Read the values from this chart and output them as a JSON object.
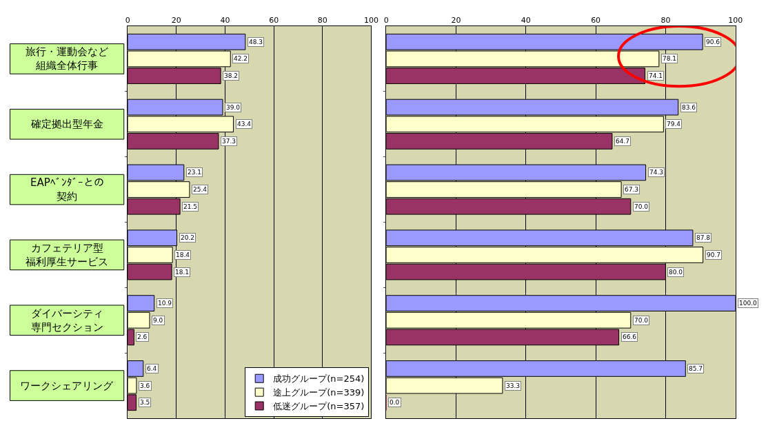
{
  "chart_data": [
    {
      "type": "bar",
      "orientation": "horizontal",
      "categories": [
        "旅行・運動会など組織全体行事",
        "確定拠出型年金",
        "EAPﾍﾞﾝﾀﾞｰとの契約",
        "カフェテリア型福利厚生サービス",
        "ダイバーシティ専門セクション",
        "ワークシェアリング"
      ],
      "series": [
        {
          "name": "成功グループ(n=254)",
          "color": "#9999ff",
          "values": [
            48.3,
            39.0,
            23.1,
            20.2,
            10.9,
            6.4
          ],
          "value_labels": [
            "48.3",
            "39.0",
            "23.1",
            "20.2",
            "10.9",
            "6.4"
          ]
        },
        {
          "name": "途上グループ(n=339)",
          "color": "#ffffcc",
          "values": [
            42.2,
            43.4,
            25.4,
            18.4,
            9.0,
            3.6
          ],
          "value_labels": [
            "42.2",
            "43.4",
            "25.4",
            "18.4",
            "9.0",
            "3.6"
          ]
        },
        {
          "name": "低迷グループ(n=357)",
          "color": "#993366",
          "values": [
            38.2,
            37.3,
            21.5,
            18.1,
            2.6,
            3.5
          ],
          "value_labels": [
            "38.2",
            "37.3",
            "21.5",
            "18.1",
            "2.6",
            "3.5"
          ]
        }
      ],
      "xlim": [
        0,
        100
      ],
      "xticks": [
        0,
        20,
        40,
        60,
        80,
        100
      ],
      "grid": "x",
      "legend": "bottom right"
    },
    {
      "type": "bar",
      "orientation": "horizontal",
      "categories": [
        "旅行・運動会など組織全体行事",
        "確定拠出型年金",
        "EAPﾍﾞﾝﾀﾞｰとの契約",
        "カフェテリア型福利厚生サービス",
        "ダイバーシティ専門セクション",
        "ワークシェアリング"
      ],
      "series": [
        {
          "color": "#9999ff",
          "values": [
            90.6,
            83.6,
            74.3,
            87.8,
            100.0,
            85.7
          ],
          "value_labels": [
            "90.6",
            "83.6",
            "74.3",
            "87.8",
            "100.0",
            "85.7"
          ]
        },
        {
          "color": "#ffffcc",
          "values": [
            78.1,
            79.4,
            67.3,
            90.7,
            70.0,
            33.3
          ],
          "value_labels": [
            "78.1",
            "79.4",
            "67.3",
            "90.7",
            "70.0",
            "33.3"
          ]
        },
        {
          "color": "#993366",
          "values": [
            74.1,
            64.7,
            70.0,
            80.0,
            66.6,
            0.0
          ],
          "value_labels": [
            "74.1",
            "64.7",
            "70.0",
            "80.0",
            "66.6",
            "0.0"
          ]
        }
      ],
      "xlim": [
        0,
        100
      ],
      "xticks": [
        0,
        20,
        40,
        60,
        80,
        100
      ],
      "grid": "x",
      "tick_labels": "x"
    }
  ]
}
